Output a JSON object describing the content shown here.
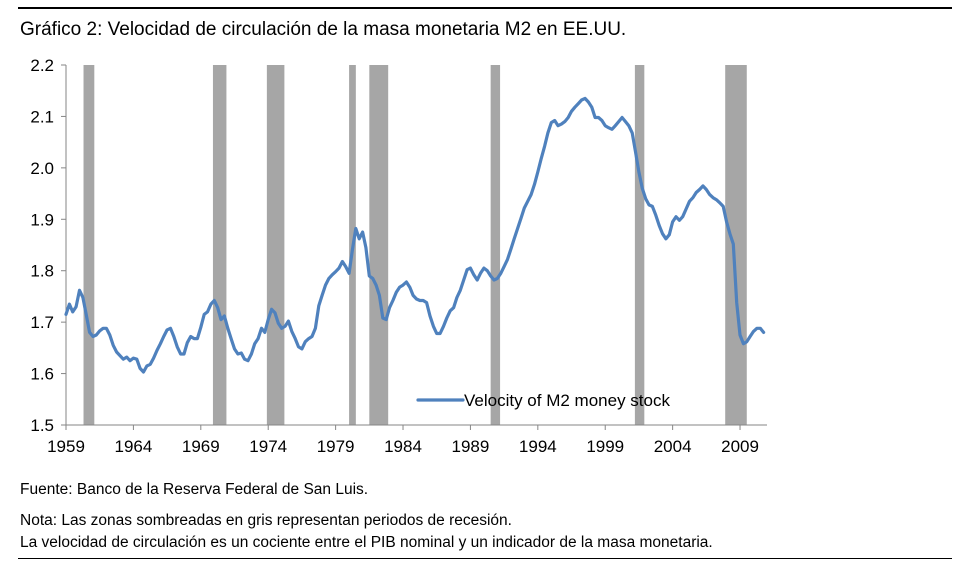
{
  "header": {
    "title": "Gráfico 2: Velocidad de circulación de la masa monetaria M2 en EE.UU."
  },
  "footer": {
    "source": "Fuente: Banco de la Reserva Federal de San Luis.",
    "note_line1": "Nota: Las zonas sombreadas en gris representan periodos de recesión.",
    "note_line2": "La velocidad de circulación es un cociente entre el PIB nominal y un indicador de la masa monetaria."
  },
  "colors": {
    "line": "#4f81bd",
    "recession": "#a6a6a6"
  },
  "chart_data": {
    "type": "line",
    "title": "",
    "xlabel": "",
    "ylabel": "",
    "xlim": [
      1959.0,
      2011.0
    ],
    "ylim": [
      1.5,
      2.2
    ],
    "y_ticks": [
      "1.5",
      "1.6",
      "1.7",
      "1.8",
      "1.9",
      "2.0",
      "2.1",
      "2.2"
    ],
    "x_ticks": [
      "1959",
      "1964",
      "1969",
      "1974",
      "1979",
      "1984",
      "1989",
      "1994",
      "1999",
      "2004",
      "2009"
    ],
    "grid": false,
    "legend_position": "bottom-right",
    "recessions": [
      [
        1960.3,
        1961.1
      ],
      [
        1969.9,
        1970.9
      ],
      [
        1973.9,
        1975.2
      ],
      [
        1980.0,
        1980.5
      ],
      [
        1981.5,
        1982.9
      ],
      [
        1990.5,
        1991.2
      ],
      [
        2001.2,
        2001.9
      ],
      [
        2007.9,
        2009.5
      ]
    ],
    "series": [
      {
        "name": "Velocity of M2 money stock",
        "x": [
          1959.0,
          1959.25,
          1959.5,
          1959.75,
          1960.0,
          1960.25,
          1960.5,
          1960.75,
          1961.0,
          1961.25,
          1961.5,
          1961.75,
          1962.0,
          1962.25,
          1962.5,
          1962.75,
          1963.0,
          1963.25,
          1963.5,
          1963.75,
          1964.0,
          1964.25,
          1964.5,
          1964.75,
          1965.0,
          1965.25,
          1965.5,
          1965.75,
          1966.0,
          1966.25,
          1966.5,
          1966.75,
          1967.0,
          1967.25,
          1967.5,
          1967.75,
          1968.0,
          1968.25,
          1968.5,
          1968.75,
          1969.0,
          1969.25,
          1969.5,
          1969.75,
          1970.0,
          1970.25,
          1970.5,
          1970.75,
          1971.0,
          1971.25,
          1971.5,
          1971.75,
          1972.0,
          1972.25,
          1972.5,
          1972.75,
          1973.0,
          1973.25,
          1973.5,
          1973.75,
          1974.0,
          1974.25,
          1974.5,
          1974.75,
          1975.0,
          1975.25,
          1975.5,
          1975.75,
          1976.0,
          1976.25,
          1976.5,
          1976.75,
          1977.0,
          1977.25,
          1977.5,
          1977.75,
          1978.0,
          1978.25,
          1978.5,
          1978.75,
          1979.0,
          1979.25,
          1979.5,
          1979.75,
          1980.0,
          1980.25,
          1980.5,
          1980.75,
          1981.0,
          1981.25,
          1981.5,
          1981.75,
          1982.0,
          1982.25,
          1982.5,
          1982.75,
          1983.0,
          1983.25,
          1983.5,
          1983.75,
          1984.0,
          1984.25,
          1984.5,
          1984.75,
          1985.0,
          1985.25,
          1985.5,
          1985.75,
          1986.0,
          1986.25,
          1986.5,
          1986.75,
          1987.0,
          1987.25,
          1987.5,
          1987.75,
          1988.0,
          1988.25,
          1988.5,
          1988.75,
          1989.0,
          1989.25,
          1989.5,
          1989.75,
          1990.0,
          1990.25,
          1990.5,
          1990.75,
          1991.0,
          1991.25,
          1991.5,
          1991.75,
          1992.0,
          1992.25,
          1992.5,
          1992.75,
          1993.0,
          1993.25,
          1993.5,
          1993.75,
          1994.0,
          1994.25,
          1994.5,
          1994.75,
          1995.0,
          1995.25,
          1995.5,
          1995.75,
          1996.0,
          1996.25,
          1996.5,
          1996.75,
          1997.0,
          1997.25,
          1997.5,
          1997.75,
          1998.0,
          1998.25,
          1998.5,
          1998.75,
          1999.0,
          1999.25,
          1999.5,
          1999.75,
          2000.0,
          2000.25,
          2000.5,
          2000.75,
          2001.0,
          2001.25,
          2001.5,
          2001.75,
          2002.0,
          2002.25,
          2002.5,
          2002.75,
          2003.0,
          2003.25,
          2003.5,
          2003.75,
          2004.0,
          2004.25,
          2004.5,
          2004.75,
          2005.0,
          2005.25,
          2005.5,
          2005.75,
          2006.0,
          2006.25,
          2006.5,
          2006.75,
          2007.0,
          2007.25,
          2007.5,
          2007.75,
          2008.0,
          2008.25,
          2008.5,
          2008.75,
          2009.0,
          2009.25,
          2009.5,
          2009.75,
          2010.0,
          2010.25,
          2010.5,
          2010.75
        ],
        "values": [
          1.715,
          1.735,
          1.72,
          1.73,
          1.762,
          1.748,
          1.715,
          1.68,
          1.672,
          1.675,
          1.683,
          1.688,
          1.688,
          1.675,
          1.655,
          1.642,
          1.635,
          1.628,
          1.632,
          1.625,
          1.63,
          1.628,
          1.61,
          1.603,
          1.615,
          1.618,
          1.63,
          1.645,
          1.658,
          1.672,
          1.685,
          1.688,
          1.672,
          1.652,
          1.638,
          1.638,
          1.66,
          1.672,
          1.668,
          1.668,
          1.69,
          1.715,
          1.72,
          1.735,
          1.742,
          1.728,
          1.705,
          1.712,
          1.688,
          1.668,
          1.648,
          1.638,
          1.64,
          1.628,
          1.625,
          1.638,
          1.658,
          1.668,
          1.688,
          1.68,
          1.705,
          1.725,
          1.718,
          1.698,
          1.688,
          1.692,
          1.702,
          1.682,
          1.668,
          1.652,
          1.648,
          1.662,
          1.668,
          1.672,
          1.688,
          1.732,
          1.752,
          1.772,
          1.785,
          1.792,
          1.798,
          1.805,
          1.818,
          1.808,
          1.795,
          1.842,
          1.882,
          1.862,
          1.875,
          1.845,
          1.79,
          1.785,
          1.772,
          1.752,
          1.708,
          1.705,
          1.728,
          1.742,
          1.758,
          1.768,
          1.772,
          1.778,
          1.768,
          1.752,
          1.745,
          1.742,
          1.742,
          1.738,
          1.712,
          1.692,
          1.678,
          1.678,
          1.692,
          1.708,
          1.722,
          1.728,
          1.748,
          1.762,
          1.782,
          1.802,
          1.805,
          1.792,
          1.782,
          1.795,
          1.805,
          1.8,
          1.79,
          1.782,
          1.785,
          1.795,
          1.808,
          1.822,
          1.842,
          1.862,
          1.882,
          1.902,
          1.922,
          1.935,
          1.948,
          1.968,
          1.992,
          2.018,
          2.042,
          2.068,
          2.088,
          2.092,
          2.082,
          2.085,
          2.09,
          2.098,
          2.11,
          2.118,
          2.125,
          2.132,
          2.135,
          2.128,
          2.118,
          2.098,
          2.098,
          2.092,
          2.082,
          2.078,
          2.075,
          2.082,
          2.09,
          2.098,
          2.09,
          2.082,
          2.068,
          2.03,
          1.992,
          1.96,
          1.94,
          1.928,
          1.925,
          1.908,
          1.888,
          1.872,
          1.862,
          1.87,
          1.895,
          1.905,
          1.898,
          1.905,
          1.92,
          1.935,
          1.942,
          1.952,
          1.958,
          1.965,
          1.958,
          1.948,
          1.942,
          1.938,
          1.932,
          1.925,
          1.895,
          1.872,
          1.852,
          1.738,
          1.675,
          1.658,
          1.662,
          1.672,
          1.682,
          1.688,
          1.688,
          1.68
        ]
      }
    ]
  }
}
